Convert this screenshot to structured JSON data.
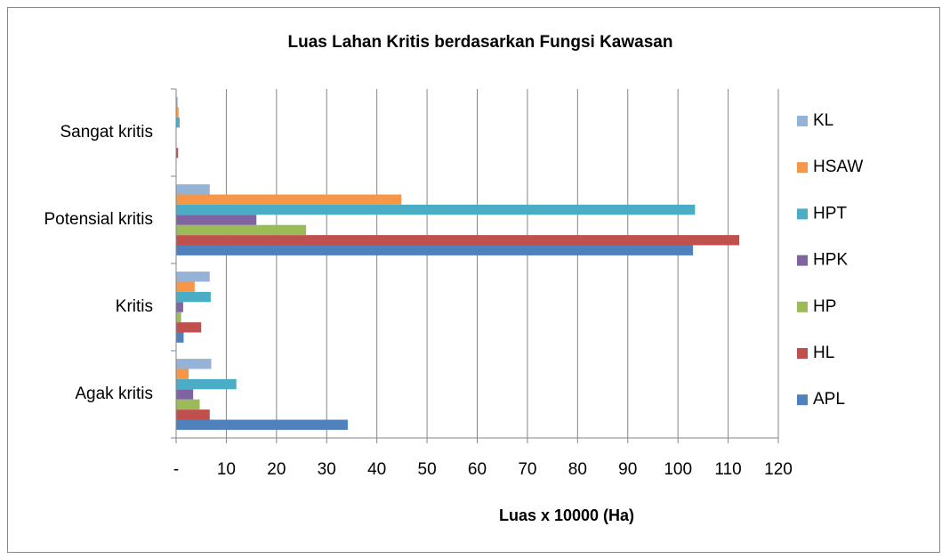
{
  "chart_data": {
    "type": "bar",
    "orientation": "horizontal",
    "title": "Luas Lahan Kritis berdasarkan Fungsi Kawasan",
    "x_label": "Luas x 10000 (Ha)",
    "categories": [
      "Agak kritis",
      "Kritis",
      "Potensial kritis",
      "Sangat kritis"
    ],
    "series": [
      {
        "name": "APL",
        "color": "#4f81bd",
        "values": [
          34.2,
          1.5,
          103,
          0
        ]
      },
      {
        "name": "HL",
        "color": "#c0504d",
        "values": [
          6.7,
          5,
          112.2,
          0.4
        ]
      },
      {
        "name": "HP",
        "color": "#9bbb59",
        "values": [
          4.7,
          1,
          25.9,
          0
        ]
      },
      {
        "name": "HPK",
        "color": "#8064a2",
        "values": [
          3.4,
          1.4,
          16,
          0
        ]
      },
      {
        "name": "HPT",
        "color": "#4bacc6",
        "values": [
          12,
          6.9,
          103.4,
          0.7
        ]
      },
      {
        "name": "HSAW",
        "color": "#f79646",
        "values": [
          2.5,
          3.7,
          44.9,
          0.5
        ]
      },
      {
        "name": "KL",
        "color": "#95b3d7",
        "values": [
          7,
          6.7,
          6.7,
          0.3
        ]
      }
    ],
    "xlim": [
      0,
      120
    ],
    "xticks": [
      {
        "value": 0,
        "label": "-"
      },
      10,
      20,
      30,
      40,
      50,
      60,
      70,
      80,
      90,
      100,
      110,
      120
    ],
    "grid": true,
    "legend": "right"
  }
}
